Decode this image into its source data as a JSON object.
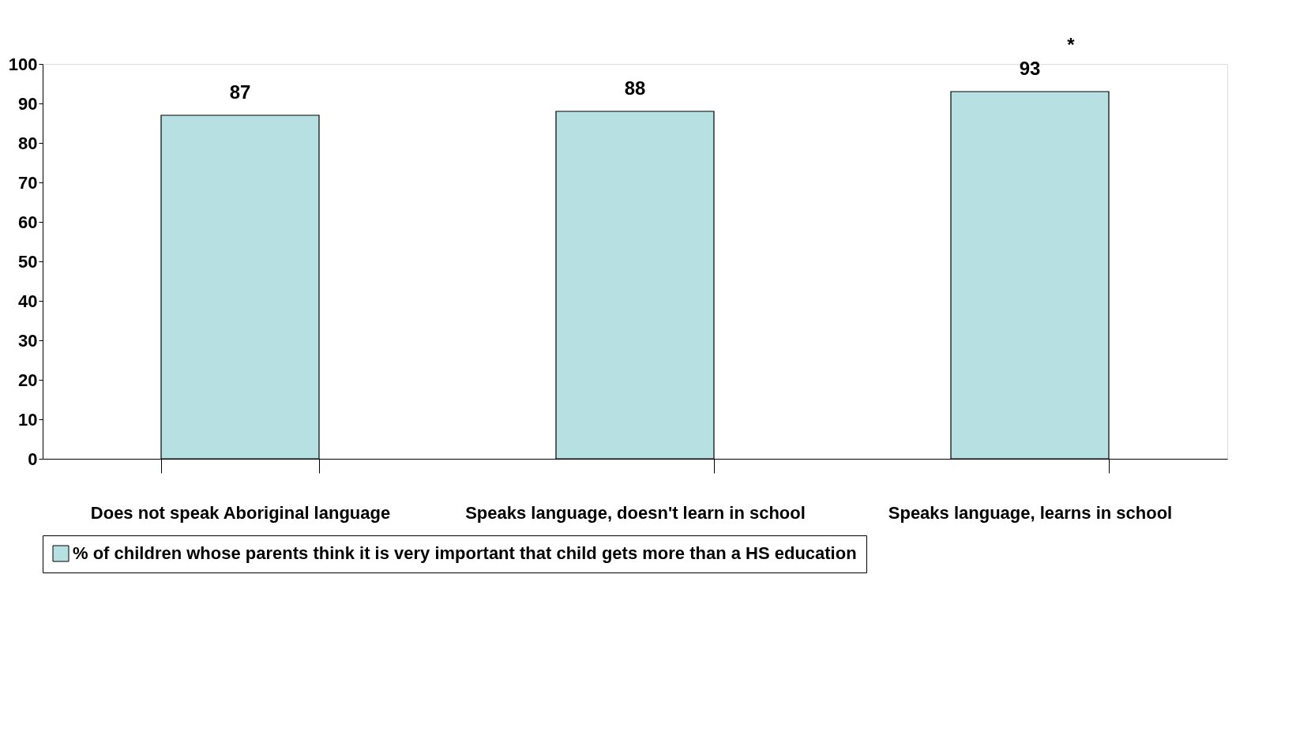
{
  "chart_data": {
    "type": "bar",
    "categories": [
      "Does not speak Aboriginal language",
      "Speaks language, doesn't learn in school",
      "Speaks language, learns in school"
    ],
    "series": [
      {
        "name": "% of children whose parents think it is very important that child gets more than a HS education",
        "color": "#b7e0e3",
        "values": [
          87,
          88,
          93
        ]
      }
    ],
    "ylim": [
      0,
      100
    ],
    "yticks": [
      0,
      10,
      20,
      30,
      40,
      50,
      60,
      70,
      80,
      90,
      100
    ],
    "data_labels": true,
    "grid": false,
    "legend": "bottom",
    "annotations": [
      {
        "text": "*",
        "x": "Speaks language, learns in school",
        "y": 93
      }
    ]
  }
}
